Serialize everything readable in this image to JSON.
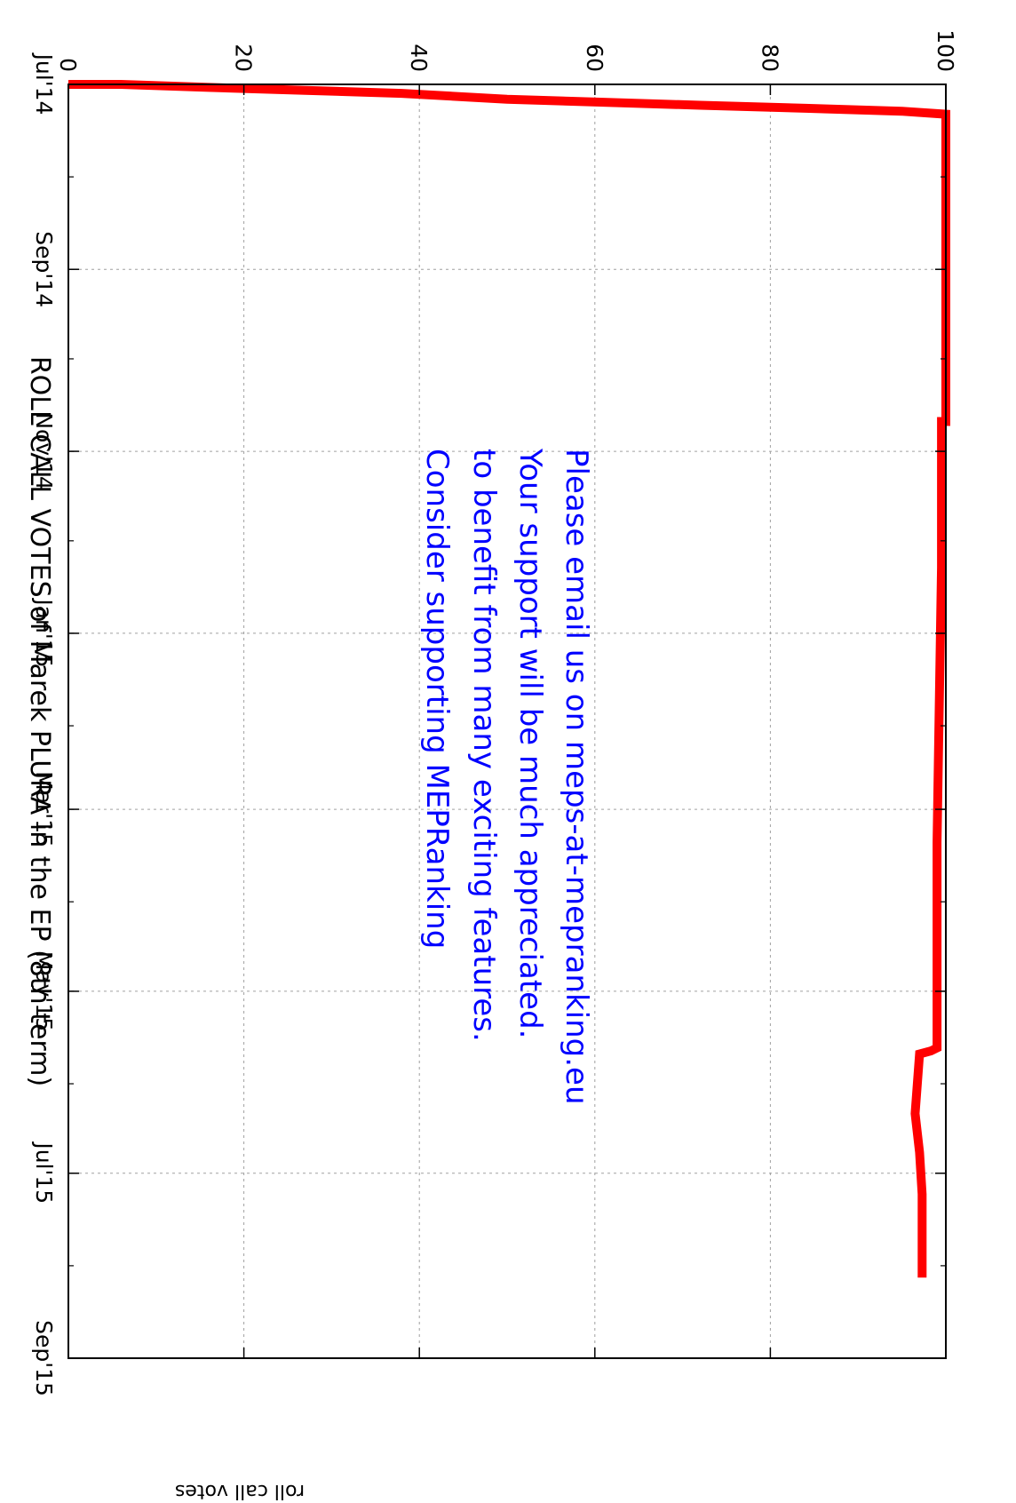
{
  "chart_data": {
    "type": "line",
    "title": "ROLL CALL VOTES of Marek PLURA in the EP (8th term)",
    "ylabel": "roll call votes",
    "xlabel": "",
    "ylim": [
      0,
      100
    ],
    "yticks": [
      "0",
      "20",
      "40",
      "60",
      "80",
      "100"
    ],
    "xlim": [
      "2014-07-01",
      "2015-09-01"
    ],
    "xticks": [
      {
        "date": "2014-07-01",
        "label": "Jul'14"
      },
      {
        "date": "2014-09-01",
        "label": "Sep'14"
      },
      {
        "date": "2014-11-01",
        "label": "Nov'14"
      },
      {
        "date": "2015-01-01",
        "label": "Jan'15"
      },
      {
        "date": "2015-03-01",
        "label": "Mar'15"
      },
      {
        "date": "2015-05-01",
        "label": "May'15"
      },
      {
        "date": "2015-07-01",
        "label": "Jul'15"
      },
      {
        "date": "2015-09-01",
        "label": "Sep'15"
      }
    ],
    "grid": true,
    "series": [
      {
        "color": "#ff0000",
        "points": [
          {
            "x": "2014-07-01",
            "y": 0
          },
          {
            "x": "2014-07-01",
            "y": 2
          },
          {
            "x": "2014-07-01",
            "y": 6
          },
          {
            "x": "2014-07-02",
            "y": 16
          },
          {
            "x": "2014-07-03",
            "y": 27
          },
          {
            "x": "2014-07-04",
            "y": 38
          },
          {
            "x": "2014-07-06",
            "y": 50
          },
          {
            "x": "2014-07-07",
            "y": 61
          },
          {
            "x": "2014-07-08",
            "y": 72
          },
          {
            "x": "2014-07-09",
            "y": 84
          },
          {
            "x": "2014-07-10",
            "y": 95
          },
          {
            "x": "2014-07-11",
            "y": 100
          },
          {
            "x": "2014-10-22",
            "y": 100
          },
          {
            "x": "2014-10-22",
            "y": 99.5
          },
          {
            "x": "2014-12-10",
            "y": 99.5
          },
          {
            "x": "2015-03-12",
            "y": 99
          },
          {
            "x": "2015-05-20",
            "y": 99
          },
          {
            "x": "2015-05-21",
            "y": 98.3
          },
          {
            "x": "2015-05-22",
            "y": 97
          },
          {
            "x": "2015-06-11",
            "y": 96.5
          },
          {
            "x": "2015-06-24",
            "y": 97
          },
          {
            "x": "2015-07-08",
            "y": 97.3
          },
          {
            "x": "2015-08-05",
            "y": 97.3
          }
        ]
      }
    ],
    "annotation": [
      "Consider supporting MEPRanking",
      "to benefit from many exciting features.",
      "Your support will be much appreciated.",
      "Please email us on meps-at-mepranking.eu"
    ],
    "annotation_color": "#0000ff"
  }
}
